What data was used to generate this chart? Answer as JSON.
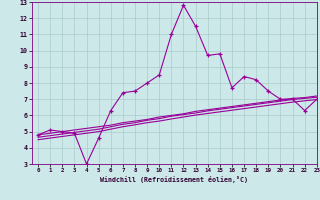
{
  "xlabel": "Windchill (Refroidissement éolien,°C)",
  "bg_color": "#cce8e8",
  "line_color": "#990099",
  "grid_color": "#aacccc",
  "x_values": [
    0,
    1,
    2,
    3,
    4,
    5,
    6,
    7,
    8,
    9,
    10,
    11,
    12,
    13,
    14,
    15,
    16,
    17,
    18,
    19,
    20,
    21,
    22,
    23
  ],
  "y_main": [
    4.8,
    5.1,
    5.0,
    4.9,
    3.0,
    4.6,
    6.3,
    7.4,
    7.5,
    8.0,
    8.5,
    11.0,
    12.8,
    11.5,
    9.7,
    9.8,
    7.7,
    8.4,
    8.2,
    7.5,
    7.0,
    7.0,
    6.3,
    7.0
  ],
  "y_line1": [
    4.8,
    4.9,
    5.0,
    5.1,
    5.2,
    5.3,
    5.4,
    5.55,
    5.65,
    5.75,
    5.9,
    6.0,
    6.1,
    6.25,
    6.35,
    6.45,
    6.55,
    6.65,
    6.75,
    6.85,
    6.95,
    7.05,
    7.1,
    7.2
  ],
  "y_line2": [
    4.65,
    4.75,
    4.85,
    4.95,
    5.05,
    5.15,
    5.3,
    5.45,
    5.55,
    5.7,
    5.8,
    5.95,
    6.05,
    6.15,
    6.28,
    6.38,
    6.48,
    6.58,
    6.68,
    6.78,
    6.88,
    6.98,
    7.05,
    7.12
  ],
  "y_line3": [
    4.5,
    4.6,
    4.7,
    4.8,
    4.9,
    5.0,
    5.15,
    5.3,
    5.42,
    5.55,
    5.65,
    5.78,
    5.9,
    6.02,
    6.12,
    6.22,
    6.32,
    6.42,
    6.52,
    6.62,
    6.72,
    6.82,
    6.9,
    6.98
  ],
  "ylim": [
    3,
    13
  ],
  "xlim": [
    -0.5,
    23
  ],
  "yticks": [
    3,
    4,
    5,
    6,
    7,
    8,
    9,
    10,
    11,
    12,
    13
  ],
  "xticks": [
    0,
    1,
    2,
    3,
    4,
    5,
    6,
    7,
    8,
    9,
    10,
    11,
    12,
    13,
    14,
    15,
    16,
    17,
    18,
    19,
    20,
    21,
    22,
    23
  ]
}
